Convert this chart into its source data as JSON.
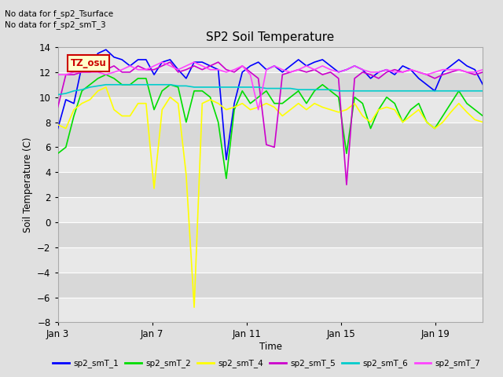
{
  "title": "SP2 Soil Temperature",
  "ylabel": "Soil Temperature (C)",
  "xlabel": "Time",
  "no_data_text": [
    "No data for f_sp2_Tsurface",
    "No data for f_sp2_smT_3"
  ],
  "tz_label": "TZ_osu",
  "ylim": [
    -8,
    14
  ],
  "yticks": [
    -8,
    -6,
    -4,
    -2,
    0,
    2,
    4,
    6,
    8,
    10,
    12,
    14
  ],
  "band_colors": [
    "#e8e8e8",
    "#d8d8d8"
  ],
  "grid_color": "#ffffff",
  "colors": {
    "sp2_smT_1": "#0000ff",
    "sp2_smT_2": "#00dd00",
    "sp2_smT_4": "#ffff00",
    "sp2_smT_5": "#cc00cc",
    "sp2_smT_6": "#00cccc",
    "sp2_smT_7": "#ff44ff"
  },
  "xtick_positions": [
    0,
    4,
    8,
    12,
    16
  ],
  "xtick_labels": [
    "Jan 3",
    "Jan 7",
    "Jan 11",
    "Jan 15",
    "Jan 19"
  ],
  "xlim": [
    0,
    18
  ],
  "series_keys": [
    "sp2_smT_1",
    "sp2_smT_2",
    "sp2_smT_4",
    "sp2_smT_5",
    "sp2_smT_6",
    "sp2_smT_7"
  ],
  "sp2_smT_1": [
    7.5,
    9.8,
    9.5,
    12.5,
    12.5,
    13.5,
    13.8,
    13.2,
    13.0,
    12.5,
    13.0,
    13.0,
    11.8,
    12.8,
    13.0,
    12.2,
    11.5,
    12.8,
    12.8,
    12.5,
    12.2,
    5.0,
    9.5,
    12.0,
    12.5,
    12.8,
    12.2,
    12.5,
    12.0,
    12.5,
    13.0,
    12.5,
    12.8,
    13.0,
    12.5,
    12.0,
    12.2,
    12.5,
    12.2,
    11.5,
    12.0,
    12.2,
    11.8,
    12.5,
    12.2,
    11.5,
    11.0,
    10.5,
    12.0,
    12.5,
    13.0,
    12.5,
    12.2,
    11.0
  ],
  "sp2_smT_2": [
    5.5,
    6.0,
    8.5,
    10.5,
    11.0,
    11.5,
    11.8,
    11.5,
    11.0,
    11.0,
    11.5,
    11.5,
    9.0,
    10.5,
    11.0,
    10.8,
    8.0,
    10.5,
    10.5,
    10.0,
    8.0,
    3.5,
    9.0,
    10.5,
    9.5,
    10.0,
    10.5,
    9.5,
    9.5,
    10.0,
    10.5,
    9.5,
    10.5,
    11.0,
    10.5,
    10.0,
    5.5,
    10.0,
    9.5,
    7.5,
    9.0,
    10.0,
    9.5,
    8.0,
    9.0,
    9.5,
    8.0,
    7.5,
    8.5,
    9.5,
    10.5,
    9.5,
    9.0,
    8.5
  ],
  "sp2_smT_4": [
    7.8,
    7.5,
    9.0,
    9.5,
    9.8,
    10.5,
    10.8,
    9.0,
    8.5,
    8.5,
    9.5,
    9.5,
    2.7,
    9.0,
    10.0,
    9.5,
    3.8,
    -6.8,
    9.5,
    9.8,
    9.5,
    9.0,
    9.2,
    9.5,
    9.0,
    9.2,
    9.5,
    9.2,
    8.5,
    9.0,
    9.5,
    9.0,
    9.5,
    9.2,
    9.0,
    8.8,
    9.0,
    9.5,
    8.5,
    8.0,
    9.0,
    9.2,
    9.0,
    8.0,
    8.5,
    9.0,
    8.0,
    7.5,
    8.0,
    8.8,
    9.5,
    8.8,
    8.2,
    8.0
  ],
  "sp2_smT_5": [
    9.2,
    11.8,
    11.8,
    12.0,
    12.0,
    12.2,
    12.2,
    12.5,
    12.0,
    12.0,
    12.5,
    12.2,
    12.2,
    12.5,
    12.8,
    12.0,
    12.2,
    12.5,
    12.2,
    12.5,
    12.8,
    12.2,
    12.0,
    12.5,
    12.0,
    11.5,
    6.2,
    6.0,
    11.8,
    12.0,
    12.2,
    12.0,
    12.2,
    11.8,
    12.0,
    11.5,
    3.0,
    11.5,
    12.0,
    11.8,
    11.5,
    12.0,
    12.2,
    12.0,
    12.2,
    12.0,
    11.8,
    11.5,
    11.8,
    12.0,
    12.2,
    12.0,
    11.8,
    12.0
  ],
  "sp2_smT_6": [
    10.2,
    10.3,
    10.5,
    10.6,
    10.8,
    10.9,
    11.0,
    11.0,
    11.0,
    11.0,
    11.0,
    11.0,
    11.0,
    11.0,
    11.0,
    10.9,
    10.9,
    10.8,
    10.8,
    10.8,
    10.8,
    10.8,
    10.8,
    10.8,
    10.8,
    10.8,
    10.7,
    10.7,
    10.7,
    10.7,
    10.6,
    10.6,
    10.6,
    10.6,
    10.6,
    10.5,
    10.5,
    10.5,
    10.5,
    10.5,
    10.5,
    10.5,
    10.5,
    10.5,
    10.5,
    10.5,
    10.5,
    10.5,
    10.5,
    10.5,
    10.5,
    10.5,
    10.5,
    10.5
  ],
  "sp2_smT_7": [
    11.8,
    11.8,
    12.0,
    12.0,
    12.0,
    12.0,
    11.8,
    12.0,
    12.2,
    12.5,
    12.2,
    12.2,
    12.5,
    12.8,
    12.5,
    12.2,
    12.5,
    12.8,
    12.5,
    12.2,
    12.2,
    12.0,
    12.2,
    12.5,
    11.8,
    9.0,
    12.2,
    12.5,
    12.2,
    12.0,
    12.2,
    12.5,
    12.2,
    12.5,
    12.2,
    12.0,
    12.2,
    12.5,
    12.2,
    12.0,
    12.0,
    12.2,
    12.0,
    12.0,
    12.2,
    12.0,
    11.8,
    12.0,
    12.2,
    12.2,
    12.2,
    12.0,
    12.0,
    12.2
  ]
}
